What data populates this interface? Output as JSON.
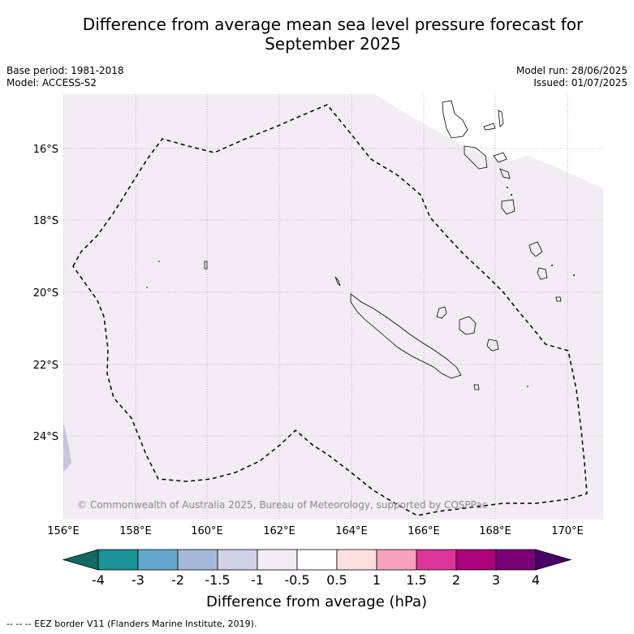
{
  "title_line1": "Difference from average mean sea level pressure forecast for",
  "title_line2": "September 2025",
  "base_period": "Base period: 1981-2018",
  "model": "Model: ACCESS-S2",
  "model_run": "Model run: 28/06/2025",
  "issued": "Issued: 01/07/2025",
  "copyright": "© Commonwealth of Australia 2025, Bureau of Meteorology, supported by COSPPac",
  "lat_labels": [
    "16°S",
    "18°S",
    "20°S",
    "22°S",
    "24°S"
  ],
  "lon_labels": [
    "156°E",
    "158°E",
    "160°E",
    "162°E",
    "164°E",
    "166°E",
    "168°E",
    "170°E"
  ],
  "colorbar": {
    "label": "Difference from average (hPa)",
    "ticks": [
      "-4",
      "-3",
      "-2",
      "-1.5",
      "-1",
      "-0.5",
      "0.5",
      "1",
      "1.5",
      "2",
      "3",
      "4"
    ],
    "colors": [
      "#0f6b61",
      "#1a9297",
      "#66a9d0",
      "#a7b9da",
      "#d3d3e6",
      "#f3ecf5",
      "#ffffff",
      "#fde0de",
      "#f7a1bd",
      "#dd3499",
      "#ae017e",
      "#7a0177",
      "#49006a"
    ]
  },
  "footnote": "-- -- -- EEZ border V11 (Flanders Marine Institute, 2019).",
  "map": {
    "extent": {
      "lon": [
        156,
        171
      ],
      "lat": [
        -26.3,
        -14.5
      ]
    },
    "background_color": "#f3ecf5",
    "negative_region_color": "#c9c6e0"
  }
}
